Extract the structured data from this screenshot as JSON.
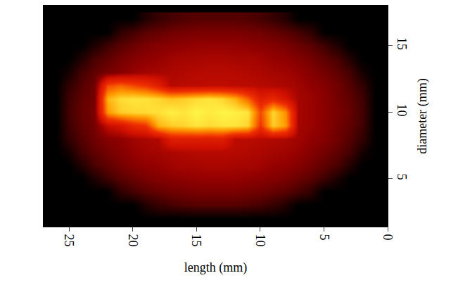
{
  "chart_data": {
    "type": "heatmap",
    "x_label": "length (mm)",
    "y_label": "diameter (mm)",
    "xlim": [
      27,
      0
    ],
    "ylim": [
      1.4,
      18
    ],
    "xticks": [
      0,
      5,
      10,
      15,
      20,
      25
    ],
    "yticks": [
      5,
      10,
      15
    ],
    "zlim": [
      0,
      100
    ],
    "x": [
      1,
      2,
      3,
      4,
      5,
      6,
      7,
      8,
      9,
      10,
      11,
      12,
      13,
      14,
      15,
      16,
      17,
      18,
      19,
      20,
      21,
      22,
      23,
      24,
      25,
      26
    ],
    "y": [
      2,
      3,
      4,
      5,
      6,
      7,
      8,
      9,
      10,
      11,
      12,
      13,
      14,
      15,
      16,
      17
    ],
    "z": [
      [
        0,
        0,
        0,
        0,
        0,
        0,
        0,
        0,
        0,
        0,
        0,
        0,
        0,
        0,
        0,
        0,
        0,
        0,
        0,
        0,
        0,
        0,
        0,
        0,
        0,
        0
      ],
      [
        0,
        0,
        0,
        0,
        0,
        0,
        0,
        8,
        13,
        16,
        18,
        19,
        19,
        19,
        19,
        18,
        16,
        13,
        8,
        0,
        0,
        0,
        0,
        0,
        0,
        0
      ],
      [
        0,
        0,
        0,
        0,
        0,
        11,
        16,
        20,
        22,
        24,
        25,
        26,
        26,
        26,
        26,
        25,
        24,
        22,
        20,
        16,
        11,
        0,
        0,
        0,
        0,
        0
      ],
      [
        0,
        0,
        0,
        7,
        15,
        20,
        23,
        26,
        28,
        29,
        30,
        31,
        31,
        31,
        31,
        30,
        29,
        28,
        26,
        23,
        20,
        15,
        7,
        0,
        0,
        0
      ],
      [
        0,
        0,
        8,
        17,
        21,
        25,
        28,
        30,
        31,
        33,
        34,
        34,
        35,
        35,
        34,
        34,
        33,
        31,
        30,
        28,
        25,
        21,
        17,
        8,
        0,
        0
      ],
      [
        0,
        5,
        16,
        21,
        25,
        28,
        31,
        33,
        34,
        35,
        36,
        37,
        37,
        37,
        37,
        36,
        35,
        34,
        33,
        31,
        28,
        25,
        21,
        16,
        5,
        0
      ],
      [
        0,
        12,
        19,
        24,
        28,
        30,
        33,
        35,
        36,
        37,
        38,
        38,
        50,
        50,
        50,
        50,
        50,
        36,
        35,
        33,
        30,
        28,
        24,
        19,
        12,
        0
      ],
      [
        0,
        15,
        21,
        25,
        29,
        32,
        34,
        80,
        90,
        60,
        92,
        95,
        95,
        93,
        95,
        92,
        90,
        85,
        60,
        55,
        45,
        40,
        25,
        21,
        15,
        0
      ],
      [
        0,
        16,
        22,
        26,
        29,
        32,
        34,
        78,
        92,
        65,
        95,
        97,
        98,
        96,
        98,
        95,
        97,
        94,
        93,
        92,
        90,
        80,
        26,
        22,
        16,
        0
      ],
      [
        0,
        15,
        21,
        25,
        29,
        32,
        34,
        45,
        55,
        50,
        70,
        85,
        92,
        95,
        93,
        90,
        88,
        92,
        94,
        95,
        93,
        85,
        25,
        21,
        15,
        0
      ],
      [
        0,
        12,
        19,
        24,
        28,
        30,
        33,
        35,
        36,
        37,
        38,
        38,
        39,
        39,
        38,
        38,
        37,
        50,
        60,
        65,
        70,
        65,
        24,
        19,
        12,
        0
      ],
      [
        0,
        5,
        16,
        21,
        25,
        28,
        31,
        33,
        34,
        35,
        36,
        37,
        37,
        37,
        37,
        36,
        35,
        34,
        33,
        31,
        28,
        25,
        21,
        16,
        5,
        0
      ],
      [
        0,
        0,
        8,
        17,
        21,
        25,
        28,
        30,
        31,
        33,
        34,
        34,
        35,
        35,
        34,
        34,
        33,
        31,
        30,
        28,
        25,
        21,
        17,
        8,
        0,
        0
      ],
      [
        0,
        0,
        0,
        7,
        15,
        20,
        23,
        26,
        28,
        29,
        30,
        31,
        31,
        31,
        31,
        30,
        29,
        28,
        26,
        23,
        20,
        15,
        7,
        0,
        0,
        0
      ],
      [
        0,
        0,
        0,
        0,
        0,
        11,
        16,
        20,
        22,
        24,
        25,
        26,
        26,
        26,
        26,
        25,
        24,
        22,
        20,
        16,
        11,
        0,
        0,
        0,
        0,
        0
      ],
      [
        0,
        0,
        0,
        0,
        0,
        0,
        0,
        8,
        13,
        16,
        18,
        19,
        19,
        19,
        19,
        18,
        16,
        13,
        8,
        0,
        0,
        0,
        0,
        0,
        0,
        0
      ]
    ]
  }
}
